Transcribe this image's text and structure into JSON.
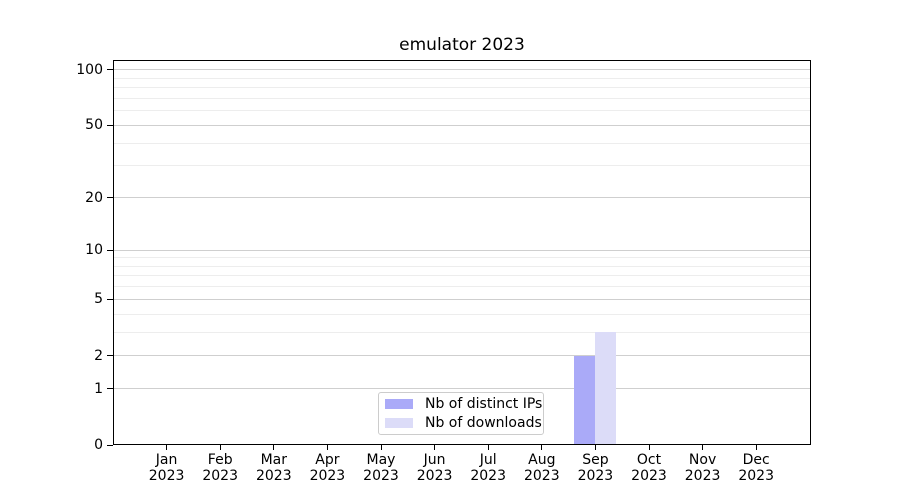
{
  "chart_data": {
    "type": "bar",
    "title": "emulator 2023",
    "categories": [
      "Jan",
      "Feb",
      "Mar",
      "Apr",
      "May",
      "Jun",
      "Jul",
      "Aug",
      "Sep",
      "Oct",
      "Nov",
      "Dec"
    ],
    "category_year": "2023",
    "series": [
      {
        "name": "Nb of distinct IPs",
        "color": "#aaaaf8",
        "values": [
          0,
          0,
          0,
          0,
          0,
          0,
          0,
          0,
          2,
          0,
          0,
          0
        ]
      },
      {
        "name": "Nb of downloads",
        "color": "#dcdcf8",
        "values": [
          0,
          0,
          0,
          0,
          0,
          0,
          0,
          0,
          3,
          0,
          0,
          0
        ]
      }
    ],
    "yscale": "log1p",
    "ylim": [
      0,
      113
    ],
    "y_major_ticks": [
      0,
      1,
      2,
      5,
      10,
      20,
      50,
      100
    ],
    "y_minor_gridlines": [
      3,
      4,
      6,
      7,
      8,
      9,
      30,
      40,
      60,
      70,
      80,
      90
    ],
    "grid": "horizontal",
    "legend_position": "lower center",
    "colors": {
      "major_grid": "#cfcfcf",
      "minor_grid": "#ededed",
      "axis": "#000000",
      "background": "#ffffff"
    }
  }
}
